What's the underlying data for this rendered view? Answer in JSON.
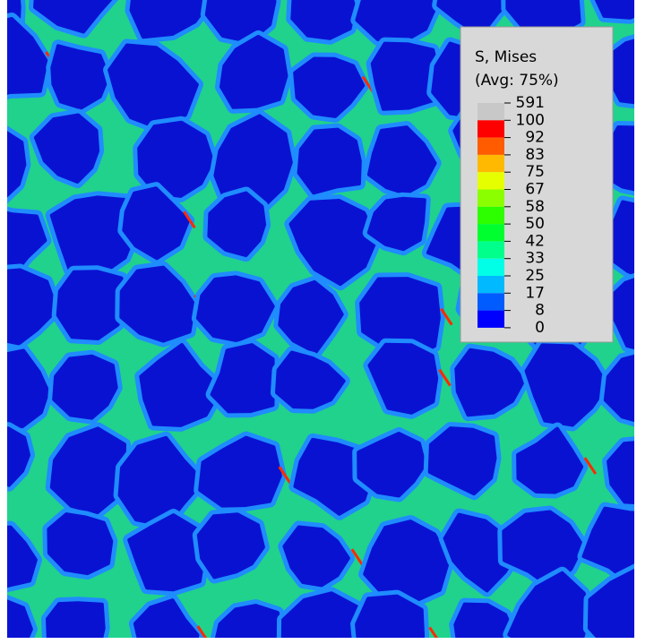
{
  "legend": {
    "title": "S, Mises",
    "subtitle": "(Avg: 75%)",
    "levels": [
      591,
      100,
      92,
      83,
      75,
      67,
      58,
      50,
      42,
      33,
      25,
      17,
      8,
      0
    ],
    "colors": [
      "#c8c8c8",
      "#ff0000",
      "#ff5c00",
      "#ffb900",
      "#e6ff00",
      "#8bff00",
      "#2eff00",
      "#00ff2e",
      "#00ff8b",
      "#00ffe6",
      "#00b9ff",
      "#005cff",
      "#0000ff"
    ]
  }
}
